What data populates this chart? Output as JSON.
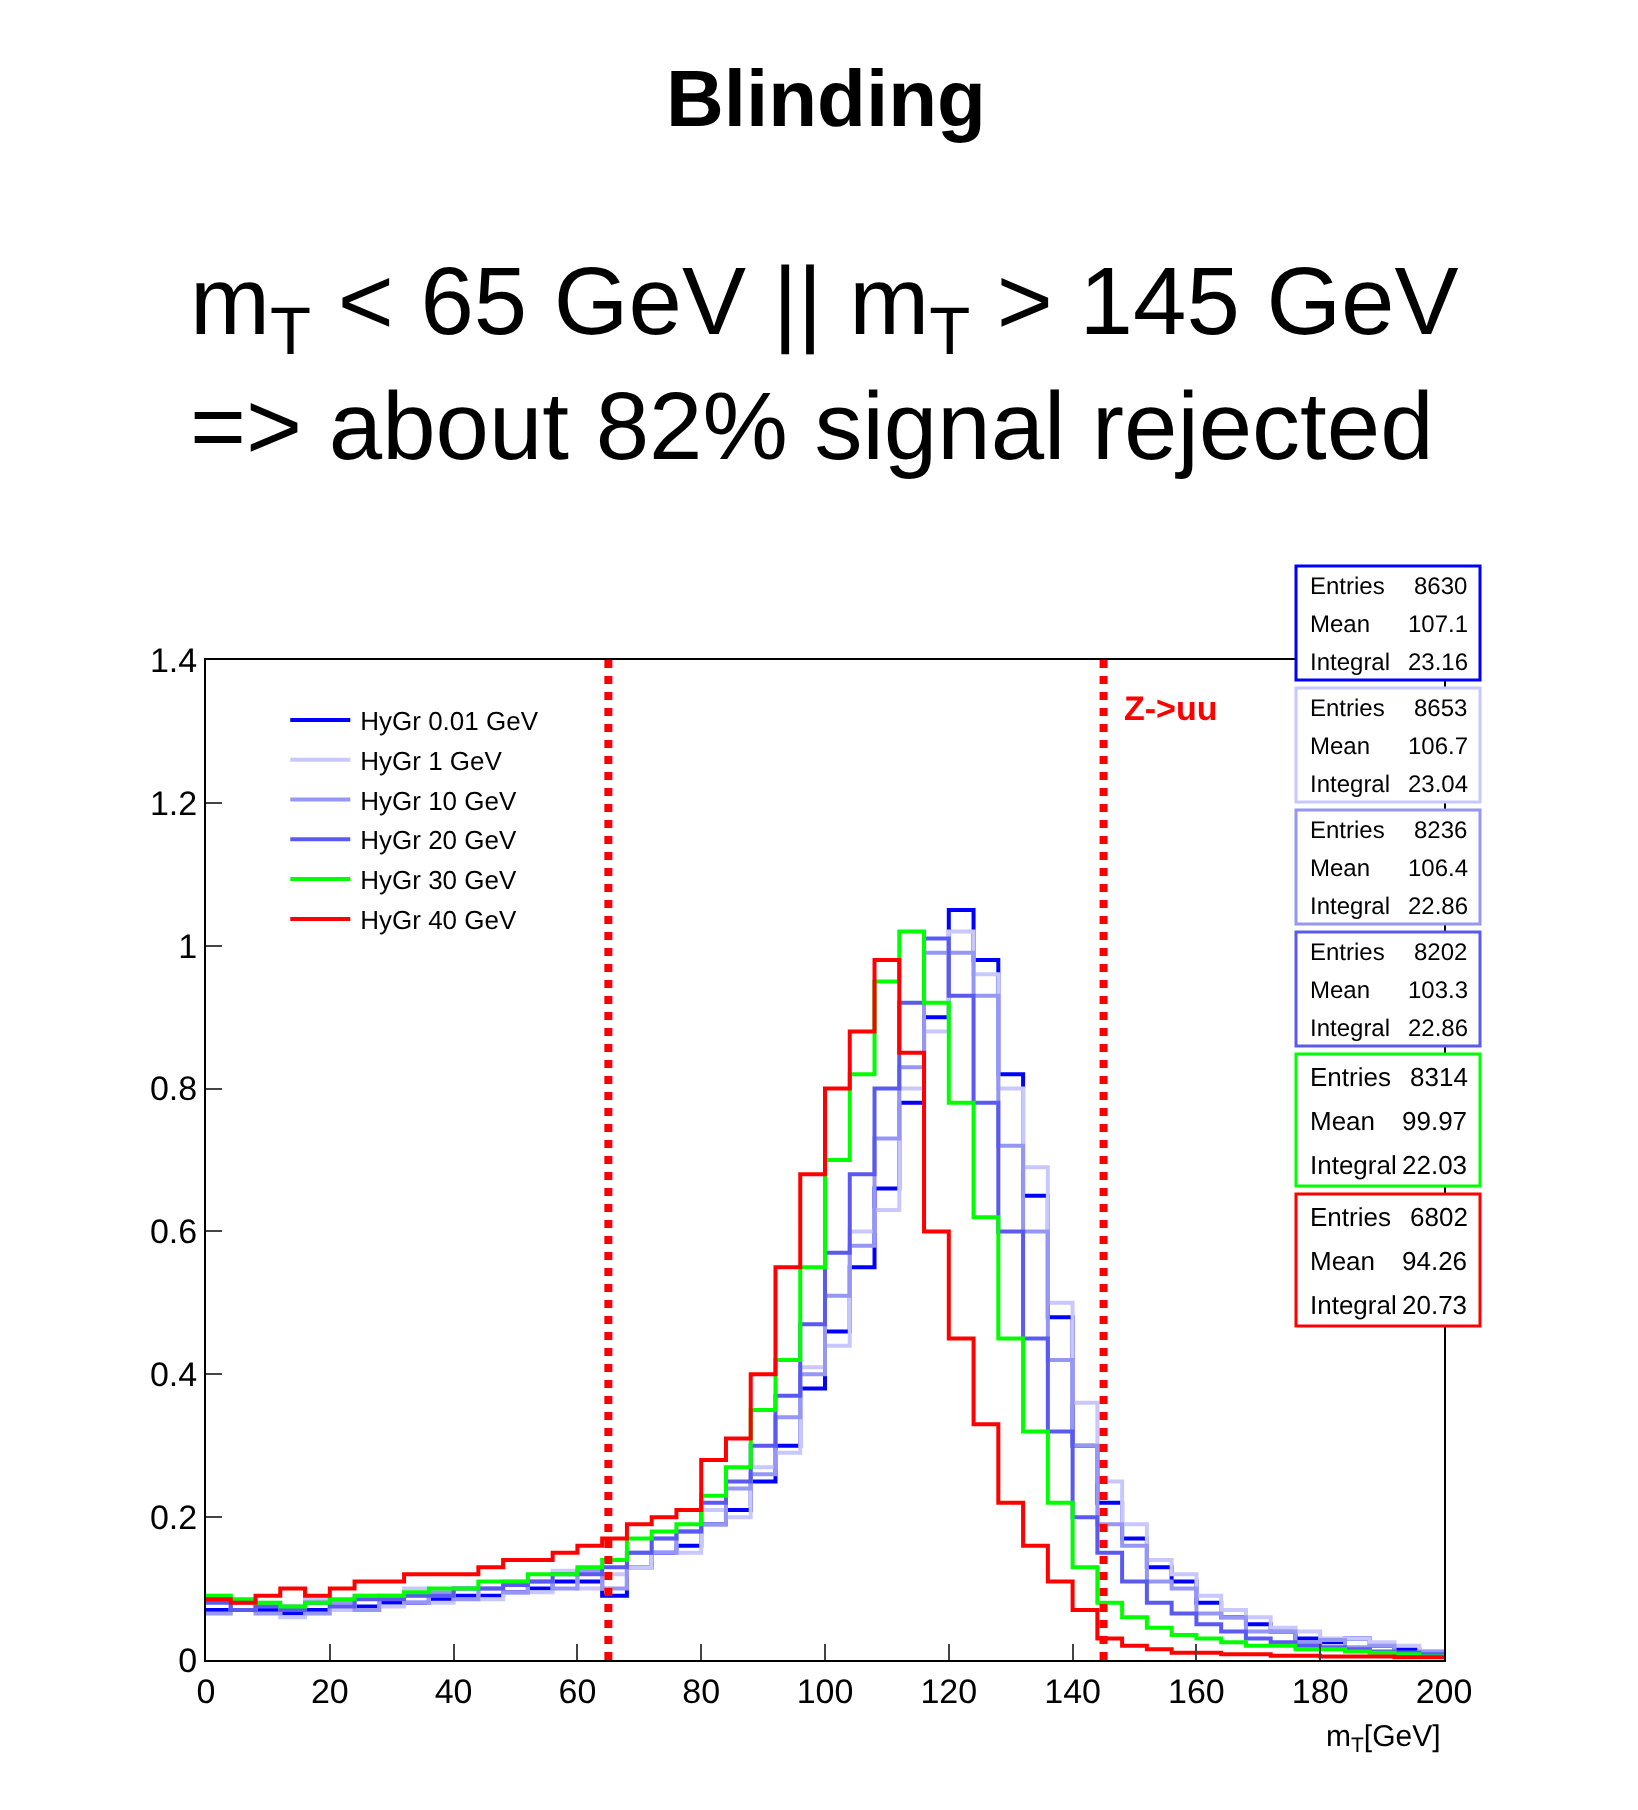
{
  "chart_data": {
    "type": "histogram",
    "title": "Blinding",
    "subtitle": "m$_{T}$ < 65 GeV || m$_{T}$ > 145 GeV\n=> about 82% signal rejected",
    "xlabel": "m$_{T}$[GeV]",
    "bins": [
      0,
      4,
      8,
      12,
      16,
      20,
      24,
      28,
      32,
      36,
      40,
      44,
      48,
      52,
      56,
      60,
      64,
      68,
      72,
      76,
      80,
      84,
      88,
      92,
      96,
      100,
      104,
      108,
      112,
      116,
      120,
      124,
      128,
      132,
      136,
      140,
      144,
      148,
      152,
      156,
      160,
      164,
      168,
      172,
      176,
      180,
      184,
      188,
      192,
      196,
      200
    ],
    "series": [
      {
        "name": "HyGr 0.01 GeV",
        "color": "#0000ff",
        "values": [
          0.07,
          0.07,
          0.07,
          0.065,
          0.07,
          0.07,
          0.075,
          0.08,
          0.08,
          0.085,
          0.09,
          0.09,
          0.095,
          0.1,
          0.11,
          0.11,
          0.09,
          0.13,
          0.15,
          0.16,
          0.19,
          0.21,
          0.25,
          0.3,
          0.38,
          0.46,
          0.55,
          0.66,
          0.78,
          0.9,
          1.05,
          0.98,
          0.82,
          0.65,
          0.48,
          0.3,
          0.22,
          0.17,
          0.13,
          0.11,
          0.08,
          0.06,
          0.05,
          0.04,
          0.03,
          0.025,
          0.03,
          0.02,
          0.015,
          0.01
        ]
      },
      {
        "name": "HyGr 1 GeV",
        "color": "#c8c8ff",
        "values": [
          0.09,
          0.07,
          0.08,
          0.06,
          0.085,
          0.07,
          0.09,
          0.075,
          0.1,
          0.08,
          0.1,
          0.085,
          0.11,
          0.095,
          0.125,
          0.1,
          0.12,
          0.13,
          0.17,
          0.15,
          0.21,
          0.2,
          0.27,
          0.29,
          0.41,
          0.44,
          0.6,
          0.63,
          0.8,
          0.88,
          1.02,
          0.96,
          0.8,
          0.69,
          0.5,
          0.36,
          0.25,
          0.19,
          0.14,
          0.12,
          0.09,
          0.07,
          0.06,
          0.045,
          0.04,
          0.03,
          0.03,
          0.025,
          0.02,
          0.012
        ]
      },
      {
        "name": "HyGr 10 GeV",
        "color": "#9696f5",
        "values": [
          0.065,
          0.08,
          0.065,
          0.075,
          0.065,
          0.08,
          0.07,
          0.09,
          0.08,
          0.095,
          0.085,
          0.1,
          0.095,
          0.11,
          0.1,
          0.125,
          0.1,
          0.15,
          0.15,
          0.18,
          0.19,
          0.24,
          0.26,
          0.34,
          0.4,
          0.51,
          0.58,
          0.73,
          0.83,
          0.99,
          0.99,
          0.93,
          0.72,
          0.6,
          0.42,
          0.3,
          0.19,
          0.16,
          0.11,
          0.1,
          0.065,
          0.06,
          0.04,
          0.04,
          0.025,
          0.028,
          0.018,
          0.02,
          0.01,
          0.012
        ]
      },
      {
        "name": "HyGr 20 GeV",
        "color": "#5a5af0",
        "values": [
          0.08,
          0.07,
          0.075,
          0.07,
          0.08,
          0.075,
          0.085,
          0.085,
          0.09,
          0.09,
          0.1,
          0.1,
          0.105,
          0.11,
          0.12,
          0.12,
          0.13,
          0.15,
          0.17,
          0.18,
          0.22,
          0.25,
          0.3,
          0.37,
          0.47,
          0.57,
          0.68,
          0.8,
          0.92,
          1.01,
          0.93,
          0.78,
          0.6,
          0.45,
          0.32,
          0.2,
          0.15,
          0.11,
          0.08,
          0.065,
          0.05,
          0.04,
          0.03,
          0.025,
          0.02,
          0.018,
          0.015,
          0.012,
          0.01,
          0.008
        ]
      },
      {
        "name": "HyGr 30 GeV",
        "color": "#00ff00",
        "values": [
          0.09,
          0.085,
          0.08,
          0.075,
          0.08,
          0.085,
          0.09,
          0.09,
          0.095,
          0.1,
          0.1,
          0.11,
          0.11,
          0.12,
          0.12,
          0.13,
          0.14,
          0.17,
          0.18,
          0.19,
          0.23,
          0.27,
          0.35,
          0.42,
          0.55,
          0.7,
          0.82,
          0.95,
          1.02,
          0.92,
          0.78,
          0.62,
          0.45,
          0.32,
          0.22,
          0.13,
          0.08,
          0.06,
          0.045,
          0.035,
          0.03,
          0.025,
          0.02,
          0.02,
          0.015,
          0.015,
          0.012,
          0.01,
          0.008,
          0.005
        ]
      },
      {
        "name": "HyGr 40 GeV",
        "color": "#ff0000",
        "values": [
          0.085,
          0.08,
          0.09,
          0.1,
          0.09,
          0.1,
          0.11,
          0.11,
          0.12,
          0.12,
          0.12,
          0.13,
          0.14,
          0.14,
          0.15,
          0.16,
          0.17,
          0.19,
          0.2,
          0.21,
          0.28,
          0.31,
          0.4,
          0.55,
          0.68,
          0.8,
          0.88,
          0.98,
          0.85,
          0.6,
          0.45,
          0.33,
          0.22,
          0.16,
          0.11,
          0.07,
          0.03,
          0.02,
          0.015,
          0.01,
          0.01,
          0.008,
          0.008,
          0.006,
          0.006,
          0.005,
          0.005,
          0.005,
          0.004,
          0.004
        ]
      }
    ],
    "xlim": [
      0,
      200
    ],
    "xticks": [
      0,
      20,
      40,
      60,
      80,
      100,
      120,
      140,
      160,
      180,
      200
    ],
    "ylim": [
      0,
      1.4
    ],
    "yticks": [
      0,
      0.2,
      0.4,
      0.6,
      0.8,
      1,
      1.2,
      1.4
    ],
    "ref_lines": [
      {
        "axis": "x",
        "value": 65,
        "color": "#ff0000",
        "line_style": "dotted"
      },
      {
        "axis": "x",
        "value": 145,
        "color": "#ff0000",
        "line_style": "dotted",
        "label": "Z->uu"
      }
    ],
    "annotations": [
      "Entries\t8630\nMean\t107.1\nIntegral\t23.16",
      "Entries\t8653\nMean\t106.7\nIntegral\t23.04",
      "Entries\t8236\nMean\t106.4\nIntegral\t22.86",
      "Entries\t8202\nMean\t103.3\nIntegral\t22.86",
      "Entries\t8314\nMean\t99.97\nIntegral\t22.03",
      "Entries\t6802\nMean\t94.26\nIntegral\t20.73"
    ],
    "legend": "top left"
  }
}
